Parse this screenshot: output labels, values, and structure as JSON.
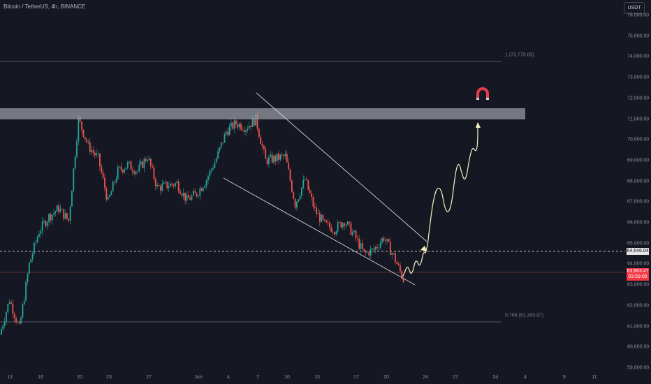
{
  "header": {
    "title": "Bitcoin / TetherUS, 4h, BINANCE",
    "currency_label": "USDT"
  },
  "price_axis": {
    "ticks": [
      "76,000.00",
      "75,000.00",
      "74,000.00",
      "73,000.00",
      "72,000.00",
      "71,000.00",
      "70,000.00",
      "69,000.00",
      "68,000.00",
      "67,000.00",
      "66,000.00",
      "65,000.00",
      "64,000.00",
      "63,000.00",
      "62,000.00",
      "61,000.00",
      "60,000.00",
      "59,000.00"
    ],
    "dashed_line_tag": "64,646.04",
    "current_price_tag": "63,663.47",
    "countdown": "03:59:05"
  },
  "time_axis": {
    "ticks": [
      "13",
      "16",
      "20",
      "23",
      "27",
      "Jun",
      "4",
      "7",
      "10",
      "13",
      "17",
      "20",
      "24",
      "27",
      "Jul",
      "4",
      "8",
      "11"
    ]
  },
  "fib_levels": {
    "upper": "1 (73,779.83)",
    "lower": "0.786 (61,300.97)"
  },
  "colors": {
    "background": "#151822",
    "up_candle": "#26a69a",
    "down_candle": "#ef5350",
    "resistance_zone": "#9598a1",
    "projection_path": "#f7f3c4",
    "magnet_icon": "#e53e4f",
    "current_price": "#f23645"
  },
  "icons": [
    "magnet-icon"
  ],
  "chart_data": {
    "type": "candlestick",
    "symbol": "Bitcoin / TetherUS",
    "interval": "4h",
    "exchange": "BINANCE",
    "ylim": [
      58800,
      76500
    ],
    "x_ticks": [
      "13",
      "16",
      "20",
      "23",
      "27",
      "Jun",
      "4",
      "7",
      "10",
      "13",
      "17",
      "20",
      "24",
      "27",
      "Jul",
      "4",
      "8",
      "11"
    ],
    "resistance_zone": [
      71000,
      71550
    ],
    "fib_upper": 73779.83,
    "fib_lower": 61300.97,
    "last_price": 63663.47,
    "reference_price": 64646.04,
    "wedge_upper_line": {
      "from": {
        "date": "Jun 6",
        "price": 71950
      },
      "to": {
        "date": "Jun 23",
        "price": 64800
      }
    },
    "wedge_lower_line": {
      "from": {
        "date": "Jun 1",
        "price": 68150
      },
      "to": {
        "date": "Jun 22",
        "price": 63000
      }
    },
    "projection_path": [
      63400,
      64700,
      67100,
      69400,
      70850
    ],
    "close_waypoints": [
      {
        "date": "May 12",
        "price": 61000
      },
      {
        "date": "May 13",
        "price": 62700
      },
      {
        "date": "May 14",
        "price": 61300
      },
      {
        "date": "May 15",
        "price": 64400
      },
      {
        "date": "May 16",
        "price": 66000
      },
      {
        "date": "May 17",
        "price": 66700
      },
      {
        "date": "May 18",
        "price": 67100
      },
      {
        "date": "May 19",
        "price": 66500
      },
      {
        "date": "May 20",
        "price": 71400
      },
      {
        "date": "May 21",
        "price": 70100
      },
      {
        "date": "May 22",
        "price": 69500
      },
      {
        "date": "May 23",
        "price": 67400
      },
      {
        "date": "May 24",
        "price": 68900
      },
      {
        "date": "May 25",
        "price": 69200
      },
      {
        "date": "May 26",
        "price": 68900
      },
      {
        "date": "May 27",
        "price": 69600
      },
      {
        "date": "May 28",
        "price": 68100
      },
      {
        "date": "May 29",
        "price": 68200
      },
      {
        "date": "May 30",
        "price": 68300
      },
      {
        "date": "May 31",
        "price": 67500
      },
      {
        "date": "Jun 1",
        "price": 67800
      },
      {
        "date": "Jun 2",
        "price": 68500
      },
      {
        "date": "Jun 3",
        "price": 69500
      },
      {
        "date": "Jun 4",
        "price": 70800
      },
      {
        "date": "Jun 5",
        "price": 71200
      },
      {
        "date": "Jun 6",
        "price": 71000
      },
      {
        "date": "Jun 7",
        "price": 71400
      },
      {
        "date": "Jun 8",
        "price": 69400
      },
      {
        "date": "Jun 9",
        "price": 69500
      },
      {
        "date": "Jun 10",
        "price": 69600
      },
      {
        "date": "Jun 11",
        "price": 67300
      },
      {
        "date": "Jun 12",
        "price": 68500
      },
      {
        "date": "Jun 13",
        "price": 67000
      },
      {
        "date": "Jun 14",
        "price": 66300
      },
      {
        "date": "Jun 15",
        "price": 66100
      },
      {
        "date": "Jun 16",
        "price": 66500
      },
      {
        "date": "Jun 17",
        "price": 65800
      },
      {
        "date": "Jun 18",
        "price": 64900
      },
      {
        "date": "Jun 19",
        "price": 65100
      },
      {
        "date": "Jun 20",
        "price": 65700
      },
      {
        "date": "Jun 21",
        "price": 64800
      },
      {
        "date": "Jun 22",
        "price": 63660
      }
    ]
  }
}
